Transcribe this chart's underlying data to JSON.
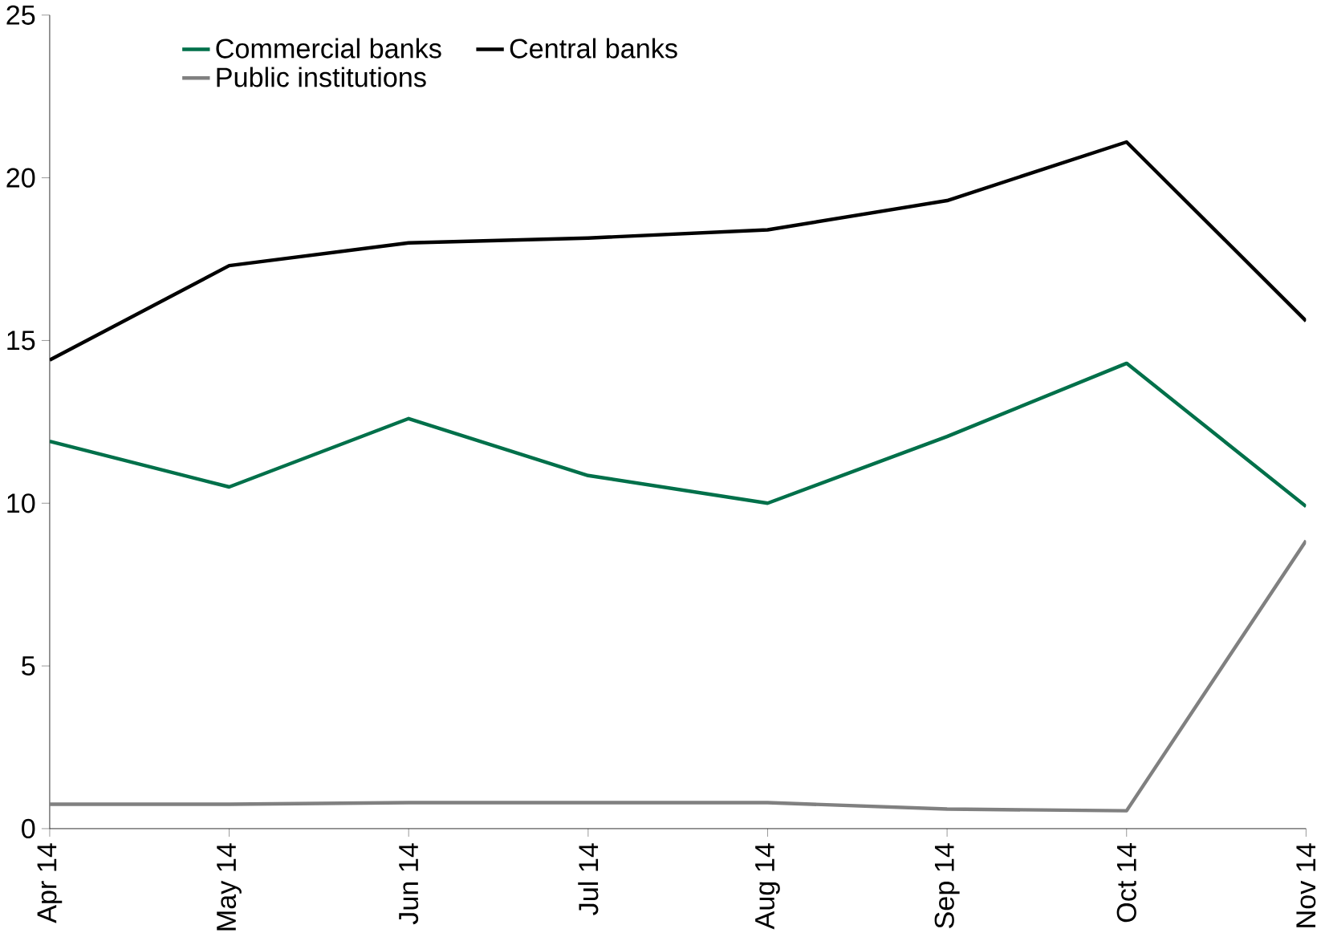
{
  "chart_data": {
    "type": "line",
    "categories": [
      "Apr 14",
      "May 14",
      "Jun 14",
      "Jul 14",
      "Aug 14",
      "Sep 14",
      "Oct 14",
      "Nov 14"
    ],
    "series": [
      {
        "name": "Commercial banks",
        "color": "#00704a",
        "values": [
          11.9,
          10.5,
          12.6,
          10.85,
          10.0,
          12.05,
          14.3,
          9.9
        ]
      },
      {
        "name": "Central banks",
        "color": "#000000",
        "values": [
          14.4,
          17.3,
          18.0,
          18.15,
          18.4,
          19.3,
          21.1,
          15.6
        ]
      },
      {
        "name": "Public institutions",
        "color": "#808080",
        "values": [
          0.75,
          0.75,
          0.8,
          0.8,
          0.8,
          0.6,
          0.55,
          8.85
        ]
      }
    ],
    "ylim": [
      0,
      25
    ],
    "yticks": [
      0,
      5,
      10,
      15,
      20,
      25
    ],
    "grid": false,
    "legend": "top left",
    "marker": "none",
    "line_style": "solid"
  }
}
